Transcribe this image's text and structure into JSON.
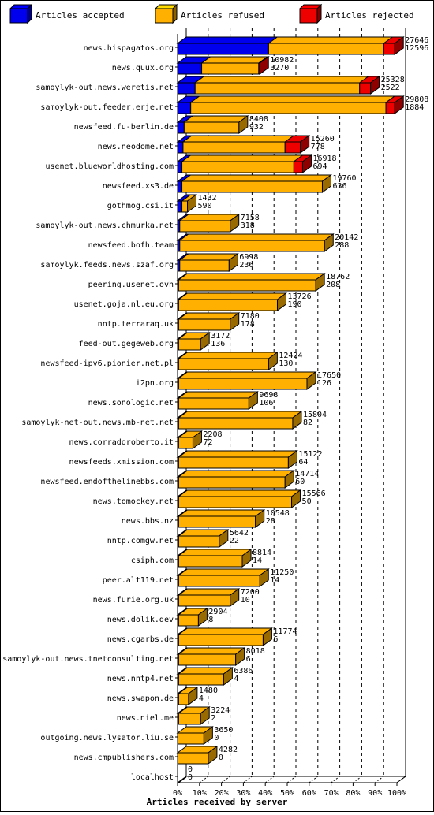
{
  "chart_data": {
    "type": "bar",
    "orientation": "horizontal",
    "stacked": true,
    "title": "Articles received by server",
    "legend_placement": "top",
    "grid": true,
    "xlim": [
      0,
      100
    ],
    "x_ticks": [
      "0%",
      "10%",
      "20%",
      "30%",
      "40%",
      "50%",
      "60%",
      "70%",
      "80%",
      "90%",
      "100%"
    ],
    "colors": {
      "accepted": "#0000ee",
      "refused": "#ffb000",
      "rejected": "#ee0000"
    },
    "series": [
      {
        "name": "Articles accepted"
      },
      {
        "name": "Articles refused"
      },
      {
        "name": "Articles rejected"
      }
    ],
    "rows": [
      {
        "server": "news.hispagatos.org",
        "total": "27646",
        "accepted": "12596",
        "bar": [
          41.5,
          52.5,
          5.0
        ]
      },
      {
        "server": "news.quux.org",
        "total": "10982",
        "accepted": "3270",
        "bar": [
          11.0,
          26.0,
          0.5
        ]
      },
      {
        "server": "samoylyk-out.news.weretis.net",
        "total": "25328",
        "accepted": "2522",
        "bar": [
          8.0,
          75.0,
          5.0
        ]
      },
      {
        "server": "samoylyk-out.feeder.erje.net",
        "total": "29808",
        "accepted": "1884",
        "bar": [
          6.0,
          89.0,
          4.0
        ]
      },
      {
        "server": "newsfeed.fu-berlin.de",
        "total": "8408",
        "accepted": "932",
        "bar": [
          3.0,
          25.0,
          0.0
        ]
      },
      {
        "server": "news.neodome.net",
        "total": "15260",
        "accepted": "778",
        "bar": [
          2.5,
          46.5,
          7.0
        ]
      },
      {
        "server": "usenet.blueworldhosting.com",
        "total": "16918",
        "accepted": "694",
        "bar": [
          2.0,
          51.0,
          4.0
        ]
      },
      {
        "server": "newsfeed.xs3.de",
        "total": "19760",
        "accepted": "636",
        "bar": [
          2.0,
          64.0,
          0.0
        ]
      },
      {
        "server": "gothmog.csi.it",
        "total": "1432",
        "accepted": "590",
        "bar": [
          2.0,
          2.5,
          0.0
        ]
      },
      {
        "server": "samoylyk-out.news.chmurka.net",
        "total": "7158",
        "accepted": "318",
        "bar": [
          1.0,
          23.0,
          0.0
        ]
      },
      {
        "server": "newsfeed.bofh.team",
        "total": "20142",
        "accepted": "288",
        "bar": [
          1.0,
          66.0,
          0.0
        ]
      },
      {
        "server": "samoylyk.feeds.news.szaf.org",
        "total": "6998",
        "accepted": "236",
        "bar": [
          1.0,
          22.5,
          0.0
        ]
      },
      {
        "server": "peering.usenet.ovh",
        "total": "18762",
        "accepted": "208",
        "bar": [
          0.5,
          62.5,
          0.0
        ]
      },
      {
        "server": "usenet.goja.nl.eu.org",
        "total": "13726",
        "accepted": "190",
        "bar": [
          0.5,
          45.0,
          0.0
        ]
      },
      {
        "server": "nntp.terraraq.uk",
        "total": "7180",
        "accepted": "178",
        "bar": [
          0.5,
          23.5,
          0.0
        ]
      },
      {
        "server": "feed-out.gegeweb.org",
        "total": "3172",
        "accepted": "136",
        "bar": [
          0.5,
          10.0,
          0.0
        ]
      },
      {
        "server": "newsfeed-ipv6.pionier.net.pl",
        "total": "12424",
        "accepted": "130",
        "bar": [
          0.5,
          41.0,
          0.0
        ]
      },
      {
        "server": "i2pn.org",
        "total": "17650",
        "accepted": "126",
        "bar": [
          0.5,
          58.5,
          0.0
        ]
      },
      {
        "server": "news.sonologic.net",
        "total": "9698",
        "accepted": "106",
        "bar": [
          0.5,
          32.0,
          0.0
        ]
      },
      {
        "server": "samoylyk-net-out.news.mb-net.net",
        "total": "15804",
        "accepted": "82",
        "bar": [
          0.5,
          52.0,
          0.0
        ]
      },
      {
        "server": "news.corradoroberto.it",
        "total": "2208",
        "accepted": "72",
        "bar": [
          0.5,
          6.5,
          0.0
        ]
      },
      {
        "server": "newsfeeds.xmission.com",
        "total": "15122",
        "accepted": "64",
        "bar": [
          0.5,
          50.0,
          0.0
        ]
      },
      {
        "server": "newsfeed.endofthelinebbs.com",
        "total": "14714",
        "accepted": "60",
        "bar": [
          0.5,
          48.5,
          0.0
        ]
      },
      {
        "server": "news.tomockey.net",
        "total": "15566",
        "accepted": "50",
        "bar": [
          0.5,
          51.5,
          0.0
        ]
      },
      {
        "server": "news.bbs.nz",
        "total": "10548",
        "accepted": "28",
        "bar": [
          0.5,
          35.0,
          0.0
        ]
      },
      {
        "server": "nntp.comgw.net",
        "total": "5642",
        "accepted": "22",
        "bar": [
          0.5,
          18.5,
          0.0
        ]
      },
      {
        "server": "csiph.com",
        "total": "8814",
        "accepted": "14",
        "bar": [
          0.5,
          29.0,
          0.0
        ]
      },
      {
        "server": "peer.alt119.net",
        "total": "11250",
        "accepted": "14",
        "bar": [
          0.5,
          37.0,
          0.0
        ]
      },
      {
        "server": "news.furie.org.uk",
        "total": "7200",
        "accepted": "10",
        "bar": [
          0.5,
          23.5,
          0.0
        ]
      },
      {
        "server": "news.dolik.dev",
        "total": "2904",
        "accepted": "8",
        "bar": [
          0.5,
          9.0,
          0.0
        ]
      },
      {
        "server": "news.cgarbs.de",
        "total": "11774",
        "accepted": "6",
        "bar": [
          0.5,
          38.5,
          0.0
        ]
      },
      {
        "server": "samoylyk-out.news.tnetconsulting.net",
        "total": "8018",
        "accepted": "6",
        "bar": [
          0.5,
          26.0,
          0.0
        ]
      },
      {
        "server": "news.nntp4.net",
        "total": "6386",
        "accepted": "4",
        "bar": [
          0.5,
          20.5,
          0.0
        ]
      },
      {
        "server": "news.swapon.de",
        "total": "1480",
        "accepted": "4",
        "bar": [
          0.5,
          4.5,
          0.0
        ]
      },
      {
        "server": "news.niel.me",
        "total": "3224",
        "accepted": "2",
        "bar": [
          0.5,
          10.0,
          0.0
        ]
      },
      {
        "server": "outgoing.news.lysator.liu.se",
        "total": "3650",
        "accepted": "0",
        "bar": [
          0.0,
          12.0,
          0.0
        ]
      },
      {
        "server": "news.cmpublishers.com",
        "total": "4282",
        "accepted": "0",
        "bar": [
          0.0,
          14.0,
          0.0
        ]
      },
      {
        "server": "localhost",
        "total": "0",
        "accepted": "0",
        "bar": [
          0.0,
          0.0,
          0.0
        ]
      }
    ]
  }
}
